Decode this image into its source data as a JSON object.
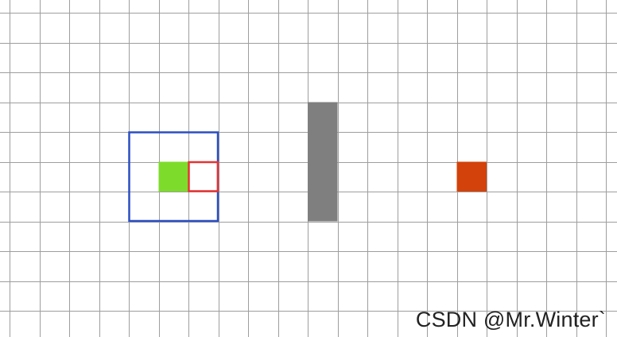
{
  "diagram": {
    "grid": {
      "columns": 21,
      "rows": 11,
      "line_color": "#9e9e9e",
      "background": "#ffffff"
    },
    "shapes": [
      {
        "name": "search-window",
        "kind": "outline",
        "col": 4,
        "row": 4,
        "cols": 3,
        "rows": 3,
        "color": "#2b4fc2"
      },
      {
        "name": "current-cell",
        "kind": "fill",
        "col": 5,
        "row": 5,
        "cols": 1,
        "rows": 1,
        "color": "#7ddc2b"
      },
      {
        "name": "candidate-cell",
        "kind": "outline",
        "col": 6,
        "row": 5,
        "cols": 1,
        "rows": 1,
        "color": "#e53333"
      },
      {
        "name": "obstacle",
        "kind": "fill",
        "col": 10,
        "row": 3,
        "cols": 1,
        "rows": 4,
        "color": "#7f7f7f"
      },
      {
        "name": "goal-cell",
        "kind": "fill",
        "col": 15,
        "row": 5,
        "cols": 1,
        "rows": 1,
        "color": "#d2420a"
      }
    ]
  },
  "watermark": {
    "text": "CSDN @Mr.Winter`"
  }
}
